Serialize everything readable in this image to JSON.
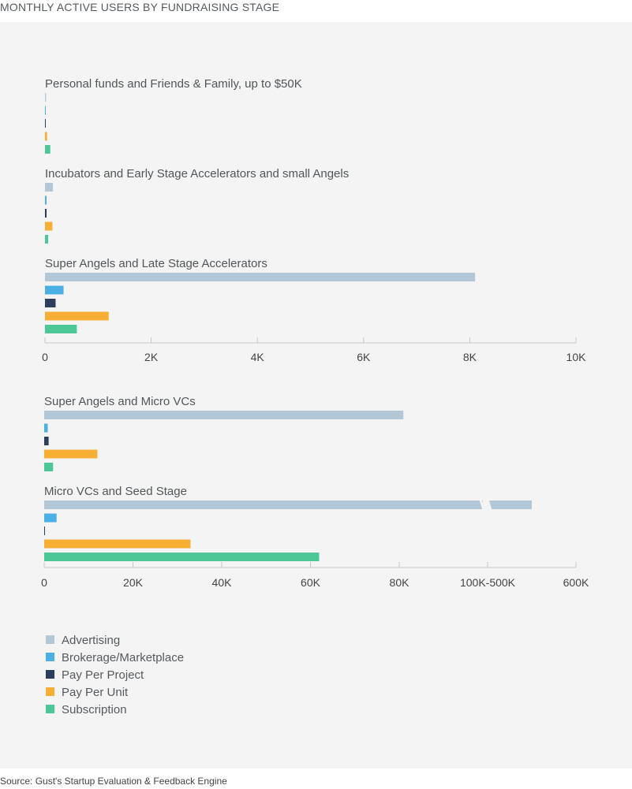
{
  "title": "MONTHLY ACTIVE USERS BY FUNDRAISING STAGE",
  "source": "Source: Gust's Startup Evaluation & Feedback Engine",
  "series_colors": {
    "Advertising": "#b3c7d6",
    "Brokerage/Marketplace": "#4bb0e3",
    "Pay Per Project": "#2b3f5c",
    "Pay Per Unit": "#f7ae34",
    "Subscription": "#4cc795"
  },
  "chart_data": [
    {
      "type": "bar",
      "orientation": "horizontal",
      "groups": [
        "Personal funds and Friends & Family, up to $50K",
        "Incubators and Early Stage Accelerators and small Angels",
        "Super Angels and Late Stage Accelerators"
      ],
      "series": [
        {
          "name": "Advertising",
          "values": [
            20,
            150,
            8100
          ]
        },
        {
          "name": "Brokerage/Marketplace",
          "values": [
            8,
            30,
            350
          ]
        },
        {
          "name": "Pay Per Project",
          "values": [
            10,
            30,
            200
          ]
        },
        {
          "name": "Pay Per Unit",
          "values": [
            40,
            140,
            1200
          ]
        },
        {
          "name": "Subscription",
          "values": [
            100,
            60,
            600
          ]
        }
      ],
      "xlim": [
        0,
        10000
      ],
      "x_ticks": [
        "0",
        "2K",
        "4K",
        "6K",
        "8K",
        "10K"
      ]
    },
    {
      "type": "bar",
      "orientation": "horizontal",
      "groups": [
        "Super Angels and Micro VCs",
        "Micro VCs and Seed Stage"
      ],
      "series": [
        {
          "name": "Advertising",
          "values": [
            81000,
            550000
          ]
        },
        {
          "name": "Brokerage/Marketplace",
          "values": [
            800,
            2800
          ]
        },
        {
          "name": "Pay Per Project",
          "values": [
            1000,
            100
          ]
        },
        {
          "name": "Pay Per Unit",
          "values": [
            12000,
            33000
          ]
        },
        {
          "name": "Subscription",
          "values": [
            2000,
            62000
          ]
        }
      ],
      "x_ticks": [
        "0",
        "20K",
        "40K",
        "60K",
        "80K",
        "100K-500K",
        "600K"
      ],
      "axis_break": "between 100K and 500K"
    }
  ],
  "legend": [
    "Advertising",
    "Brokerage/Marketplace",
    "Pay Per Project",
    "Pay Per Unit",
    "Subscription"
  ]
}
